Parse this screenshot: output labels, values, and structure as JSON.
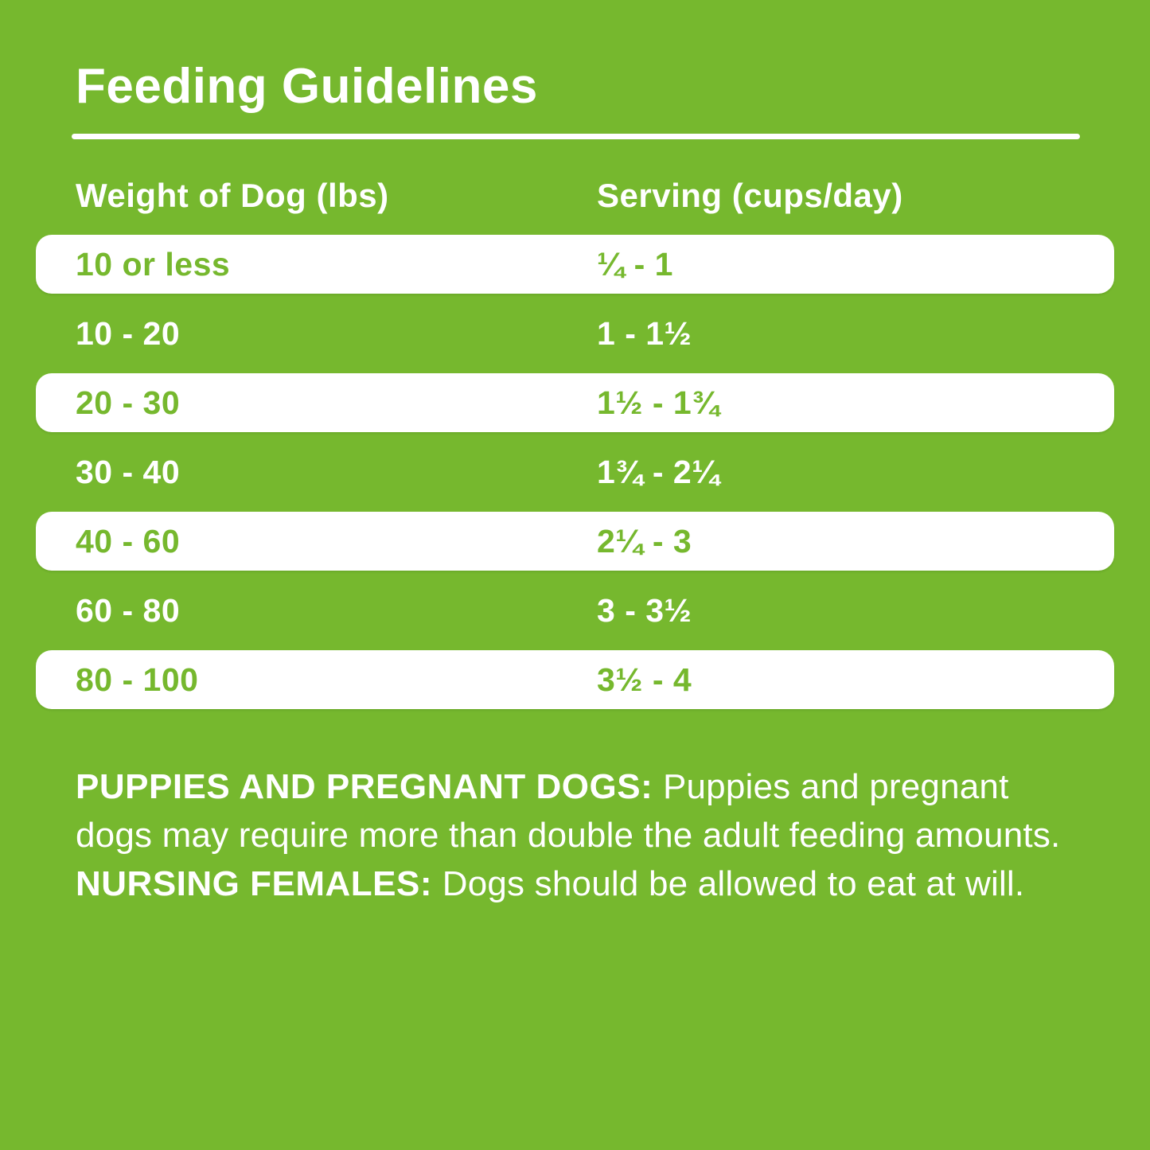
{
  "title": "Feeding Guidelines",
  "table": {
    "headers": {
      "weight": "Weight of Dog (lbs)",
      "serving": "Serving (cups/day)"
    },
    "rows": [
      {
        "weight": "10 or less",
        "serving": "¼ - 1",
        "highlighted": true
      },
      {
        "weight": "10 - 20",
        "serving": "1 - 1½",
        "highlighted": false
      },
      {
        "weight": "20 - 30",
        "serving": "1½ - 1¾",
        "highlighted": true
      },
      {
        "weight": "30 - 40",
        "serving": "1¾ - 2¼",
        "highlighted": false
      },
      {
        "weight": "40 - 60",
        "serving": "2¼ - 3",
        "highlighted": true
      },
      {
        "weight": "60 - 80",
        "serving": "3 - 3½",
        "highlighted": false
      },
      {
        "weight": "80 - 100",
        "serving": "3½ - 4",
        "highlighted": true
      }
    ]
  },
  "footnote": {
    "segments": [
      {
        "text": "PUPPIES AND PREGNANT DOGS: ",
        "bold": true
      },
      {
        "text": "Puppies and pregnant dogs may require more than double the adult feeding amounts. ",
        "bold": false
      },
      {
        "text": "NURSING FEMALES: ",
        "bold": true
      },
      {
        "text": "Dogs should be allowed to eat at will.",
        "bold": false
      }
    ]
  },
  "colors": {
    "background_green": "#76b82e",
    "highlight_row_bg": "#ffffff",
    "highlight_row_text": "#76b82e",
    "text_white": "#ffffff"
  }
}
